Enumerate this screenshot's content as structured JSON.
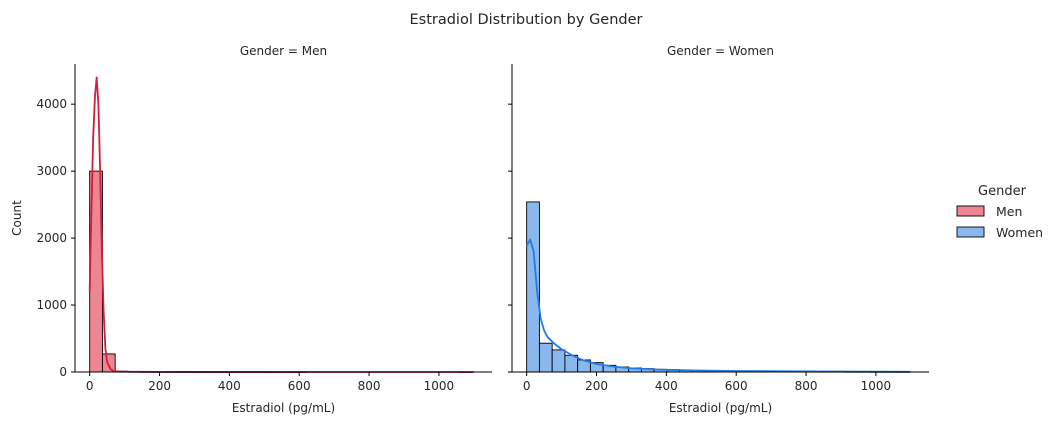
{
  "chart_data": {
    "type": "bar",
    "title": "Estradiol Distribution by Gender",
    "ylabel": "Count",
    "ylim": [
      0,
      4600
    ],
    "y_ticks": [
      0,
      1000,
      2000,
      3000,
      4000
    ],
    "legend": {
      "title": "Gender",
      "placement": "right",
      "entries": [
        {
          "label": "Men",
          "fill": "#ee8592",
          "edge": "#000000"
        },
        {
          "label": "Women",
          "fill": "#8ab8ee",
          "edge": "#000000"
        }
      ]
    },
    "facets": [
      {
        "title": "Gender = Men",
        "xlabel": "Estradiol (pg/mL)",
        "xlim": [
          -42,
          1152
        ],
        "x_ticks": [
          0,
          200,
          400,
          600,
          800,
          1000
        ],
        "bar_color": "#ee8592",
        "kde_color": "#d11f3a",
        "bin_width": 36.5,
        "bin_start": 0,
        "counts": [
          3000,
          270,
          12,
          6,
          4,
          3,
          2,
          2,
          1,
          1,
          1,
          1,
          1,
          1,
          1,
          1,
          1,
          0,
          0,
          0,
          0,
          0,
          0,
          0,
          0,
          0,
          0,
          0,
          0,
          1
        ],
        "kde": {
          "x": [
            0,
            5,
            10,
            15,
            20,
            25,
            30,
            35,
            40,
            45,
            50,
            60,
            70,
            90,
            120,
            200,
            400,
            700,
            1100
          ],
          "y": [
            1200,
            2400,
            3500,
            4100,
            4400,
            4000,
            3000,
            1800,
            900,
            350,
            150,
            40,
            10,
            5,
            3,
            2,
            1,
            0,
            0
          ]
        }
      },
      {
        "title": "Gender = Women",
        "xlabel": "Estradiol (pg/mL)",
        "xlim": [
          -42,
          1152
        ],
        "x_ticks": [
          0,
          200,
          400,
          600,
          800,
          1000
        ],
        "bar_color": "#8ab8ee",
        "kde_color": "#1f7de6",
        "bin_width": 36.5,
        "bin_start": 0,
        "counts": [
          2540,
          430,
          330,
          250,
          180,
          140,
          100,
          75,
          60,
          50,
          40,
          35,
          28,
          22,
          20,
          18,
          15,
          12,
          10,
          10,
          9,
          8,
          7,
          6,
          6,
          5,
          5,
          4,
          4,
          3
        ],
        "kde": {
          "x": [
            0,
            10,
            20,
            30,
            40,
            50,
            60,
            80,
            100,
            130,
            160,
            200,
            250,
            300,
            400,
            500,
            600,
            700,
            800,
            1000,
            1100
          ],
          "y": [
            1880,
            1980,
            1800,
            1200,
            800,
            620,
            520,
            420,
            340,
            250,
            180,
            120,
            80,
            55,
            32,
            22,
            15,
            12,
            8,
            5,
            4
          ]
        }
      }
    ]
  }
}
